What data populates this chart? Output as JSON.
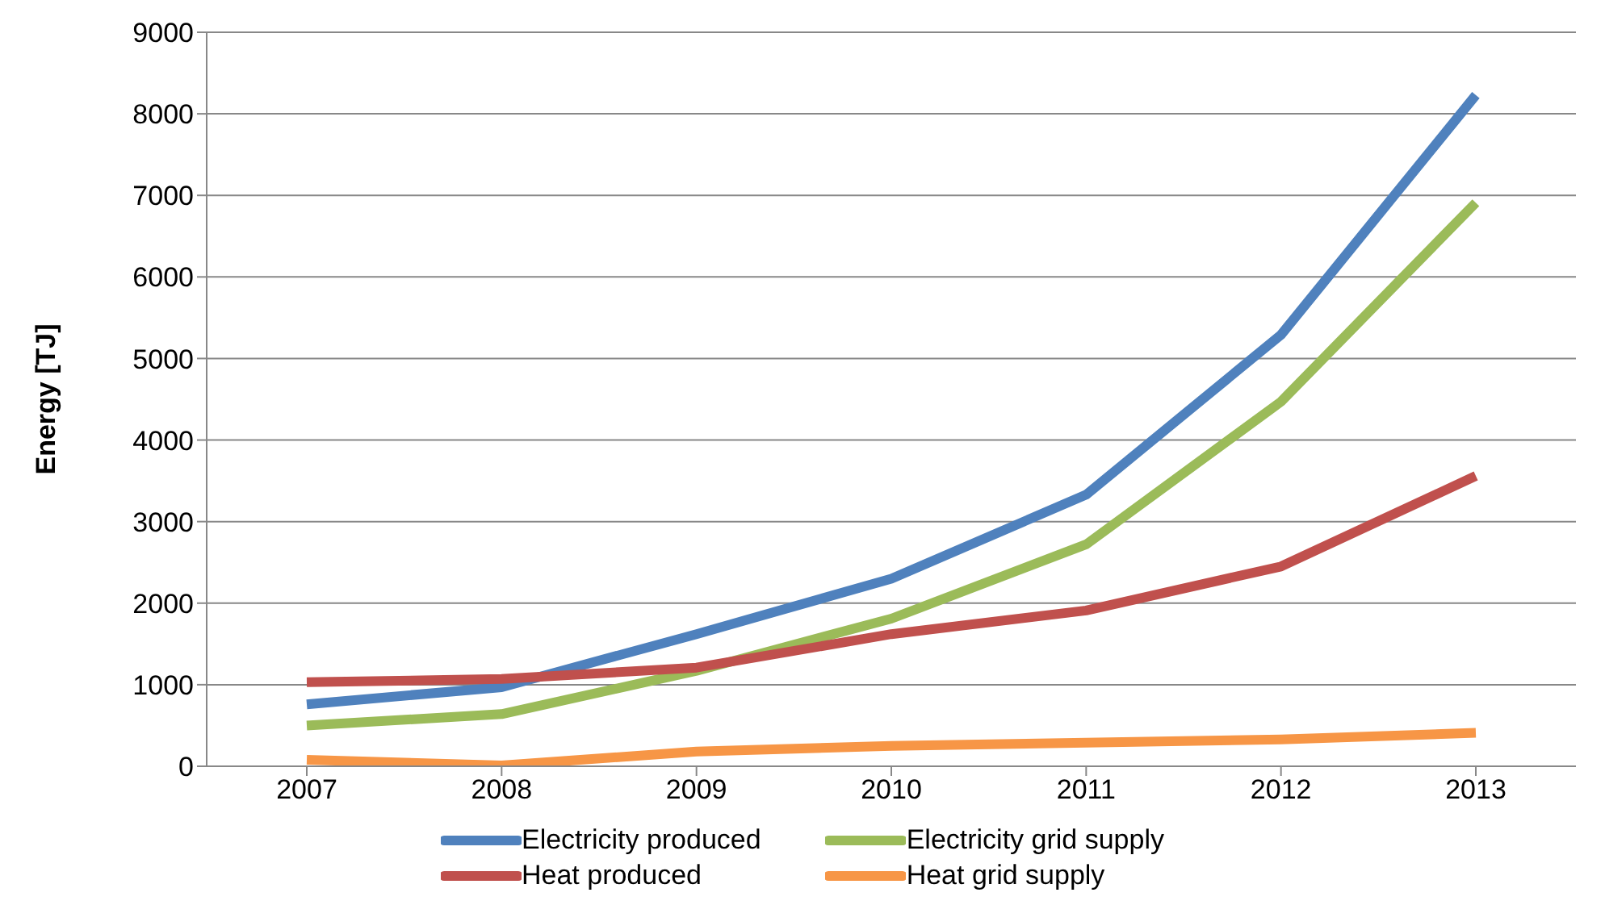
{
  "chart_data": {
    "type": "line",
    "ylabel": "Energy [TJ]",
    "categories": [
      "2007",
      "2008",
      "2009",
      "2010",
      "2011",
      "2012",
      "2013"
    ],
    "series": [
      {
        "name": "Electricity produced",
        "color": "#4f81bd",
        "values": [
          760,
          970,
          1620,
          2300,
          3330,
          5290,
          8230
        ]
      },
      {
        "name": "Electricity grid supply",
        "color": "#9bbb59",
        "values": [
          500,
          640,
          1170,
          1810,
          2720,
          4470,
          6910
        ]
      },
      {
        "name": "Heat produced",
        "color": "#c0504d",
        "values": [
          1030,
          1070,
          1210,
          1620,
          1910,
          2450,
          3560
        ]
      },
      {
        "name": "Heat grid supply",
        "color": "#f79646",
        "values": [
          80,
          10,
          180,
          250,
          290,
          330,
          410
        ]
      }
    ],
    "ylim": [
      0,
      9000
    ],
    "yticks": [
      0,
      1000,
      2000,
      3000,
      4000,
      5000,
      6000,
      7000,
      8000,
      9000
    ],
    "grid": "y",
    "legend": "bottom",
    "marker": "none",
    "line_style": "solid"
  }
}
